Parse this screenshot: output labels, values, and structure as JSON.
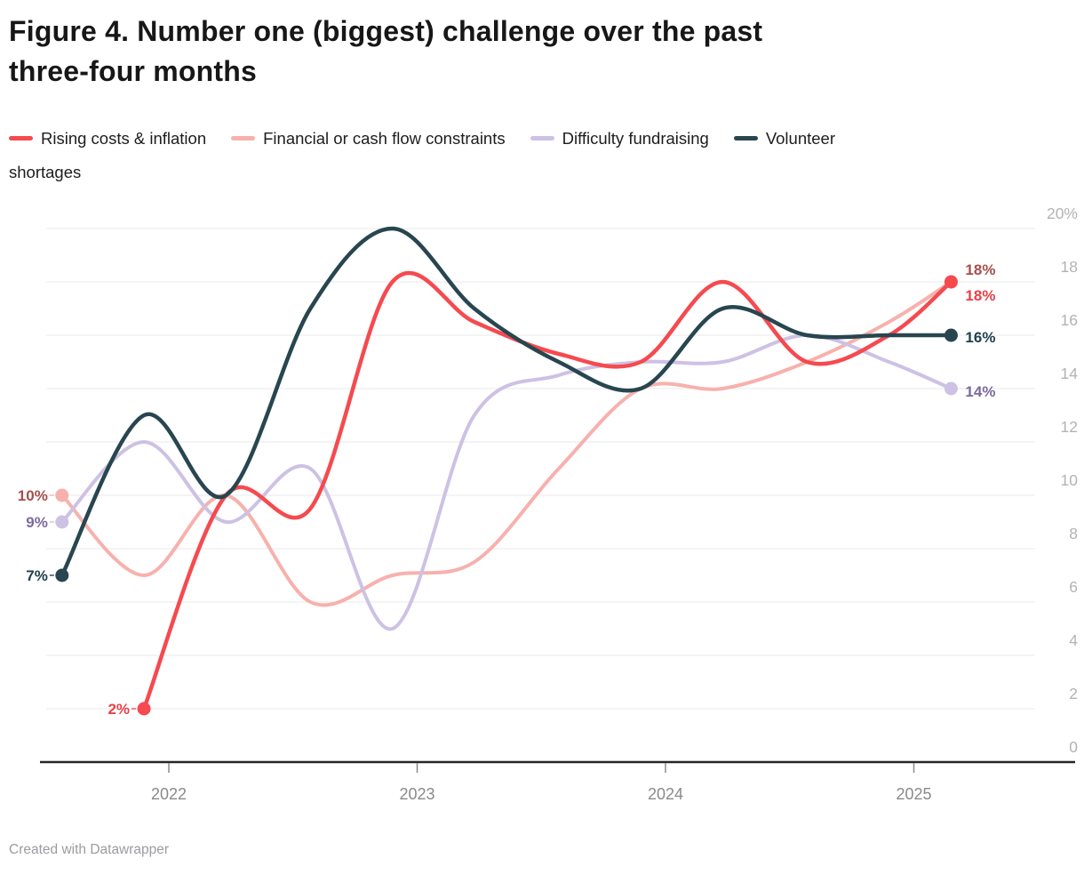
{
  "title_lines": [
    "Figure 4. Number one (biggest) challenge over the past",
    "three-four months"
  ],
  "legend": {
    "items": [
      {
        "label": "Rising costs & inflation",
        "series_key": "rising"
      },
      {
        "label": "Financial or cash flow constraints",
        "series_key": "financial"
      },
      {
        "label": "Difficulty fundraising",
        "series_key": "difficulty"
      },
      {
        "label": "Volunteer",
        "series_key": "volunteer"
      }
    ],
    "overflow_line": "shortages"
  },
  "footer": "Created with Datawrapper",
  "colors": {
    "background": "#ffffff",
    "title": "#171717",
    "legend_text": "#1d1d1d",
    "grid": "#e9e9e9",
    "axis_line": "#262626",
    "axis_tick": "#8a8a8a",
    "x_label": "#8a8a8a",
    "y_label": "#b3b3b3",
    "footer": "#9a9ca0"
  },
  "chart_data": {
    "type": "line",
    "title": "Figure 4. Number one (biggest) challenge over the past three-four months",
    "x_unit": "survey wave (decimal year)",
    "x": [
      2021.57,
      2021.9,
      2022.23,
      2022.57,
      2022.9,
      2023.23,
      2023.57,
      2023.9,
      2024.23,
      2024.57,
      2024.9,
      2025.15
    ],
    "x_axis": {
      "ticks": [
        {
          "value": 2022,
          "label": "2022"
        },
        {
          "value": 2023,
          "label": "2023"
        },
        {
          "value": 2024,
          "label": "2024"
        },
        {
          "value": 2025,
          "label": "2025"
        }
      ]
    },
    "y_axis": {
      "min": 0,
      "max": 20,
      "ticks": [
        {
          "value": 0,
          "label": "0"
        },
        {
          "value": 2,
          "label": "2"
        },
        {
          "value": 4,
          "label": "4"
        },
        {
          "value": 6,
          "label": "6"
        },
        {
          "value": 8,
          "label": "8"
        },
        {
          "value": 10,
          "label": "10"
        },
        {
          "value": 12,
          "label": "12"
        },
        {
          "value": 14,
          "label": "14"
        },
        {
          "value": 16,
          "label": "16"
        },
        {
          "value": 18,
          "label": "18"
        },
        {
          "value": 20,
          "label": "20%"
        }
      ]
    },
    "grid": true,
    "legend_position": "top",
    "series": [
      {
        "key": "rising",
        "name": "Rising costs & inflation",
        "color": "#f54a4f",
        "label_color": "#e84147",
        "values": [
          null,
          2,
          10,
          9.5,
          18,
          16.5,
          15.3,
          15,
          18,
          15,
          16,
          18
        ],
        "first_label": "2%",
        "last_label": "18%"
      },
      {
        "key": "financial",
        "name": "Financial or cash flow constraints",
        "color": "#f7b1ad",
        "label_color": "#a64e4c",
        "values": [
          10,
          7,
          10,
          6,
          7,
          7.5,
          11,
          14,
          14,
          15,
          16.5,
          18
        ],
        "first_label": "10%",
        "last_label": "18%"
      },
      {
        "key": "difficulty",
        "name": "Difficulty fundraising",
        "color": "#cdc1e4",
        "label_color": "#7a6b9d",
        "values": [
          9,
          12,
          9,
          11,
          5,
          13,
          14.5,
          15,
          15,
          16,
          15,
          14
        ],
        "first_label": "9%",
        "last_label": "14%"
      },
      {
        "key": "volunteer",
        "name": "Volunteer shortages",
        "color": "#28464f",
        "label_color": "#21404d",
        "values": [
          7,
          13,
          10,
          17,
          20,
          17,
          15,
          14,
          17,
          16,
          16,
          16
        ],
        "first_label": "7%",
        "last_label": "16%"
      }
    ]
  }
}
